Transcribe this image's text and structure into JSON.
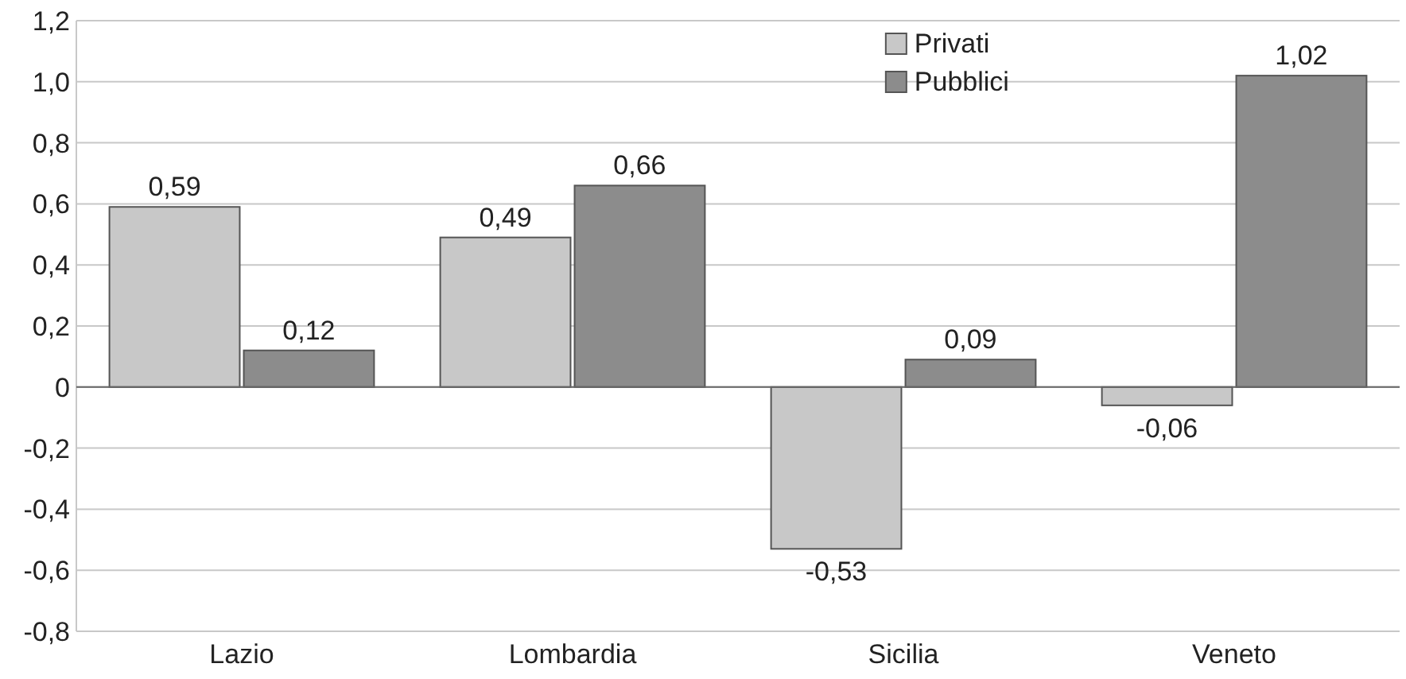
{
  "chart_data": {
    "type": "bar",
    "categories": [
      "Lazio",
      "Lombardia",
      "Sicilia",
      "Veneto"
    ],
    "series": [
      {
        "name": "Privati",
        "color": "#c8c8c8",
        "values": [
          0.59,
          0.49,
          -0.53,
          -0.06
        ],
        "value_labels": [
          "0,59",
          "0,49",
          "-0,53",
          "-0,06"
        ]
      },
      {
        "name": "Pubblici",
        "color": "#8c8c8c",
        "values": [
          0.12,
          0.66,
          0.09,
          1.02
        ],
        "value_labels": [
          "0,12",
          "0,66",
          "0,09",
          "1,02"
        ]
      }
    ],
    "ylim": [
      -0.8,
      1.2
    ],
    "yticks": [
      {
        "value": -0.8,
        "label": "-0,8"
      },
      {
        "value": -0.6,
        "label": "-0,6"
      },
      {
        "value": -0.4,
        "label": "-0,4"
      },
      {
        "value": -0.2,
        "label": "-0,2"
      },
      0,
      {
        "value": 0.2,
        "label": "0,2"
      },
      {
        "value": 0.4,
        "label": "0,4"
      },
      {
        "value": 0.6,
        "label": "0,6"
      },
      {
        "value": 0.8,
        "label": "0,8"
      },
      {
        "value": 1.0,
        "label": "1,0"
      },
      {
        "value": 1.2,
        "label": "1,2"
      }
    ],
    "grid": "y",
    "legend": "top right"
  }
}
